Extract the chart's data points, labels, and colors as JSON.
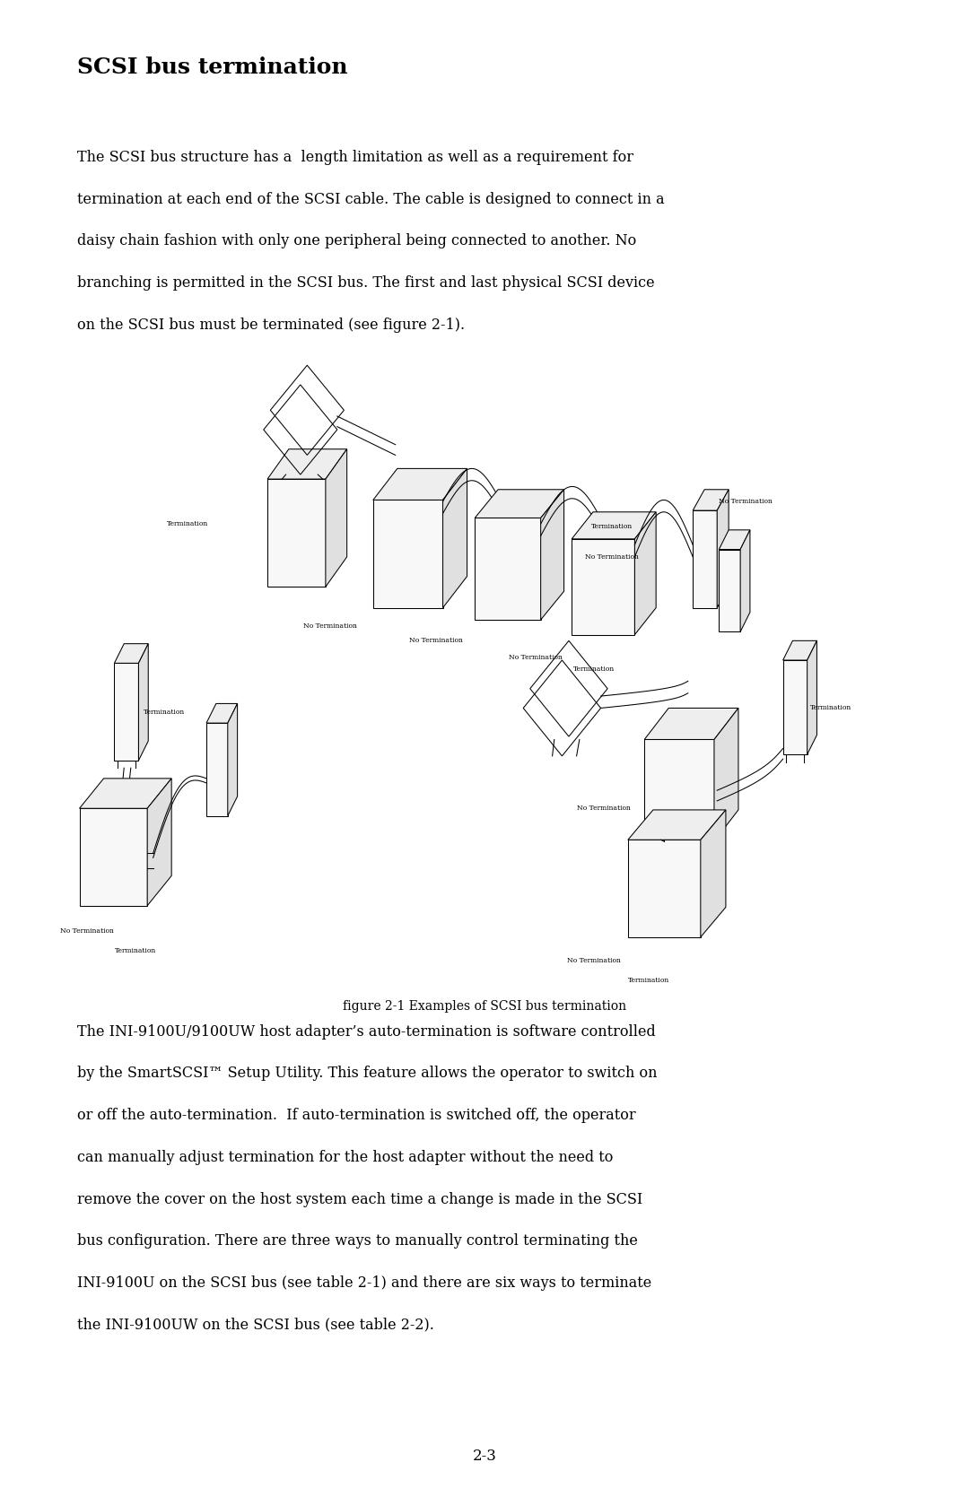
{
  "title": "SCSI bus termination",
  "background_color": "#ffffff",
  "text_color": "#000000",
  "p1_lines": [
    "The SCSI bus structure has a  length limitation as well as a requirement for",
    "termination at each end of the SCSI cable. The cable is designed to connect in a",
    "daisy chain fashion with only one peripheral being connected to another. No",
    "branching is permitted in the SCSI bus. The first and last physical SCSI device",
    "on the SCSI bus must be terminated (see figure 2-1)."
  ],
  "figure_caption": "figure 2-1 Examples of SCSI bus termination",
  "p2_lines": [
    "The INI-9100U/9100UW host adapter’s auto-termination is software controlled",
    "by the SmartSCSI™ Setup Utility. This feature allows the operator to switch on",
    "or off the auto-termination.  If auto-termination is switched off, the operator",
    "can manually adjust termination for the host adapter without the need to",
    "remove the cover on the host system each time a change is made in the SCSI",
    "bus configuration. There are three ways to manually control terminating the",
    "INI-9100U on the SCSI bus (see table 2-1) and there are six ways to terminate",
    "the INI-9100UW on the SCSI bus (see table 2-2)."
  ],
  "page_number": "2-3",
  "body_fontsize": 11.5,
  "title_fontsize": 18,
  "caption_fontsize": 10,
  "label_fontsize": 5.5
}
